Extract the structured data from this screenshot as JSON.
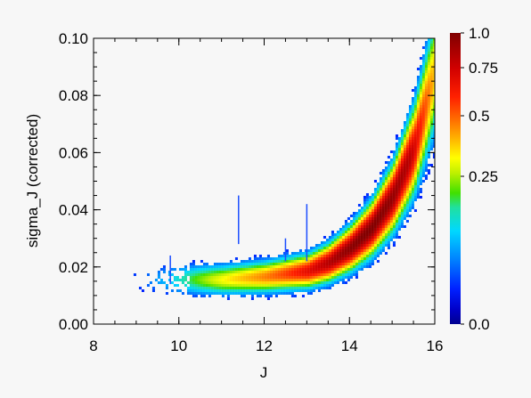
{
  "chart_data": {
    "type": "heatmap",
    "title": "",
    "xlabel": "J",
    "ylabel": "sigma_J (corrected)",
    "xlim": [
      8,
      16
    ],
    "ylim": [
      0.0,
      0.1
    ],
    "xticks": [
      8,
      10,
      12,
      14,
      16
    ],
    "xtick_labels": [
      "8",
      "10",
      "12",
      "14",
      "16"
    ],
    "yticks": [
      0.0,
      0.02,
      0.04,
      0.06,
      0.08,
      0.1
    ],
    "ytick_labels": [
      "0.00",
      "0.02",
      "0.04",
      "0.06",
      "0.08",
      "0.10"
    ],
    "colorbar": {
      "range": [
        0.0,
        1.0
      ],
      "scale": "nonlinear",
      "colormap": "rainbow",
      "ticks": [
        0.0,
        0.25,
        0.5,
        0.75,
        1.0
      ],
      "tick_labels": [
        "0.0",
        "0.25",
        "0.5",
        "0.75",
        "1.0"
      ]
    },
    "ridge": {
      "description": "density peak of sigma_J vs J",
      "x": [
        9.0,
        10.0,
        11.0,
        12.0,
        12.5,
        13.0,
        13.5,
        14.0,
        14.5,
        15.0,
        15.5,
        16.0
      ],
      "y": [
        0.016,
        0.016,
        0.016,
        0.017,
        0.018,
        0.019,
        0.022,
        0.027,
        0.034,
        0.045,
        0.062,
        0.09
      ]
    }
  }
}
